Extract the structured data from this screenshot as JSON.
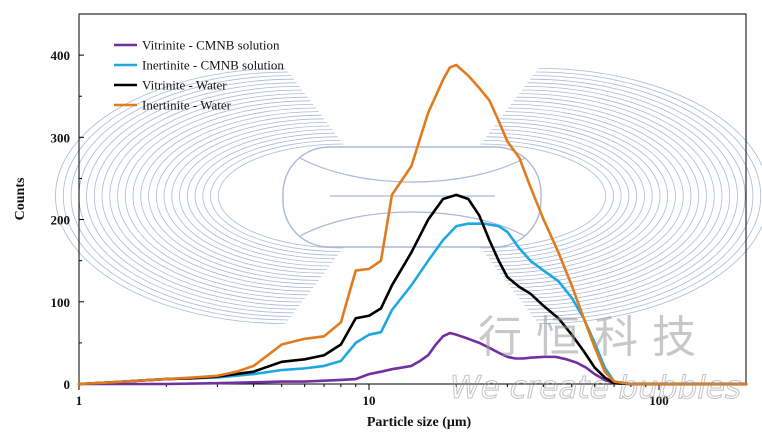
{
  "chart_data": {
    "type": "line",
    "xlabel": "Particle size (μm)",
    "ylabel": "Counts",
    "xscale": "log",
    "xlim": [
      1,
      200
    ],
    "ylim": [
      0,
      450
    ],
    "x_ticks": [
      1,
      10,
      100
    ],
    "x_tick_labels": [
      "1",
      "10",
      "100"
    ],
    "y_ticks": [
      0,
      100,
      200,
      300,
      400
    ],
    "y_tick_labels": [
      "0",
      "100",
      "200",
      "300",
      "400"
    ],
    "grid": false,
    "legend_position": "top-left",
    "series": [
      {
        "name": "Vitrinite - CMNB solution",
        "color": "#7030a0",
        "points": [
          [
            1,
            0
          ],
          [
            2,
            0
          ],
          [
            3,
            1
          ],
          [
            4,
            2
          ],
          [
            5,
            3
          ],
          [
            6,
            3
          ],
          [
            7,
            4
          ],
          [
            8,
            5
          ],
          [
            9,
            6
          ],
          [
            10,
            12
          ],
          [
            11,
            15
          ],
          [
            12,
            18
          ],
          [
            13,
            20
          ],
          [
            14,
            22
          ],
          [
            15,
            28
          ],
          [
            16,
            35
          ],
          [
            17,
            48
          ],
          [
            18,
            58
          ],
          [
            19,
            62
          ],
          [
            20,
            60
          ],
          [
            22,
            55
          ],
          [
            24,
            50
          ],
          [
            26,
            44
          ],
          [
            28,
            38
          ],
          [
            30,
            33
          ],
          [
            32,
            31
          ],
          [
            34,
            31
          ],
          [
            36,
            32
          ],
          [
            40,
            33
          ],
          [
            44,
            33
          ],
          [
            48,
            30
          ],
          [
            52,
            26
          ],
          [
            56,
            20
          ],
          [
            60,
            12
          ],
          [
            65,
            5
          ],
          [
            70,
            1
          ],
          [
            80,
            0
          ],
          [
            200,
            0
          ]
        ]
      },
      {
        "name": "Inertinite - CMNB solution",
        "color": "#1ea8e0",
        "points": [
          [
            1,
            0
          ],
          [
            1.3,
            2
          ],
          [
            1.6,
            4
          ],
          [
            2,
            6
          ],
          [
            2.5,
            7
          ],
          [
            3,
            8
          ],
          [
            4,
            12
          ],
          [
            5,
            17
          ],
          [
            6,
            19
          ],
          [
            7,
            22
          ],
          [
            8,
            28
          ],
          [
            9,
            50
          ],
          [
            10,
            60
          ],
          [
            11,
            63
          ],
          [
            12,
            90
          ],
          [
            14,
            120
          ],
          [
            16,
            150
          ],
          [
            18,
            175
          ],
          [
            20,
            192
          ],
          [
            22,
            195
          ],
          [
            25,
            195
          ],
          [
            28,
            192
          ],
          [
            30,
            185
          ],
          [
            33,
            165
          ],
          [
            36,
            150
          ],
          [
            40,
            138
          ],
          [
            45,
            125
          ],
          [
            50,
            105
          ],
          [
            55,
            80
          ],
          [
            60,
            50
          ],
          [
            65,
            20
          ],
          [
            70,
            3
          ],
          [
            80,
            0
          ],
          [
            200,
            0
          ]
        ]
      },
      {
        "name": "Vitrinite - Water",
        "color": "#000000",
        "points": [
          [
            1,
            0
          ],
          [
            1.3,
            2
          ],
          [
            1.6,
            4
          ],
          [
            2,
            6
          ],
          [
            2.5,
            7
          ],
          [
            3,
            9
          ],
          [
            4,
            15
          ],
          [
            5,
            27
          ],
          [
            6,
            30
          ],
          [
            7,
            35
          ],
          [
            8,
            48
          ],
          [
            9,
            80
          ],
          [
            10,
            83
          ],
          [
            11,
            92
          ],
          [
            12,
            120
          ],
          [
            14,
            160
          ],
          [
            16,
            200
          ],
          [
            18,
            225
          ],
          [
            20,
            230
          ],
          [
            22,
            225
          ],
          [
            24,
            205
          ],
          [
            26,
            175
          ],
          [
            28,
            150
          ],
          [
            30,
            130
          ],
          [
            33,
            118
          ],
          [
            36,
            110
          ],
          [
            40,
            95
          ],
          [
            45,
            80
          ],
          [
            50,
            60
          ],
          [
            55,
            40
          ],
          [
            60,
            20
          ],
          [
            65,
            8
          ],
          [
            70,
            1
          ],
          [
            80,
            0
          ],
          [
            200,
            0
          ]
        ]
      },
      {
        "name": "Inertinite - Water",
        "color": "#e07b1e",
        "points": [
          [
            1,
            0
          ],
          [
            1.3,
            2
          ],
          [
            1.6,
            4
          ],
          [
            2,
            6
          ],
          [
            2.5,
            8
          ],
          [
            3,
            10
          ],
          [
            3.5,
            15
          ],
          [
            4,
            22
          ],
          [
            5,
            48
          ],
          [
            6,
            55
          ],
          [
            7,
            58
          ],
          [
            8,
            75
          ],
          [
            9,
            138
          ],
          [
            10,
            140
          ],
          [
            11,
            150
          ],
          [
            12,
            230
          ],
          [
            14,
            265
          ],
          [
            16,
            330
          ],
          [
            18,
            370
          ],
          [
            19,
            385
          ],
          [
            20,
            388
          ],
          [
            22,
            375
          ],
          [
            24,
            360
          ],
          [
            26,
            345
          ],
          [
            28,
            320
          ],
          [
            30,
            295
          ],
          [
            33,
            275
          ],
          [
            36,
            240
          ],
          [
            40,
            200
          ],
          [
            45,
            160
          ],
          [
            50,
            120
          ],
          [
            55,
            80
          ],
          [
            60,
            45
          ],
          [
            65,
            15
          ],
          [
            70,
            3
          ],
          [
            80,
            0
          ],
          [
            200,
            0
          ]
        ]
      }
    ]
  },
  "watermark": {
    "line1": "行恒科技",
    "line2": "We create bubbles",
    "color": "#9a9a9a"
  },
  "colors": {
    "frame": "#000000",
    "logo_lines": "#a9b9d6"
  }
}
